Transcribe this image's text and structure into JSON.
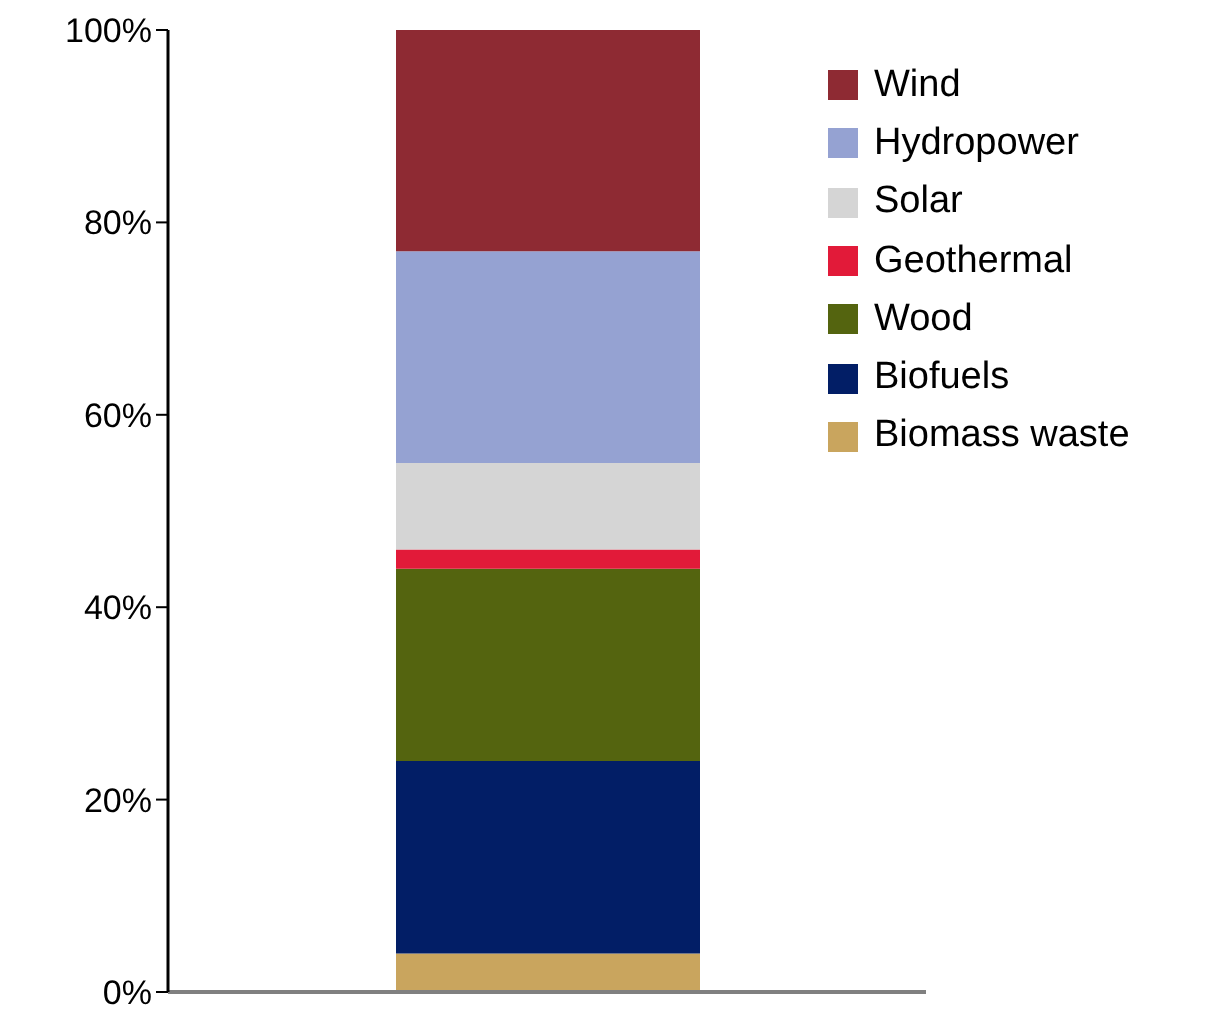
{
  "chart_data": {
    "type": "bar",
    "stacked": true,
    "categories": [
      null
    ],
    "series": [
      {
        "name": "Biomass waste",
        "color": "#c9a55e",
        "values": [
          4
        ]
      },
      {
        "name": "Biofuels",
        "color": "#021e66",
        "values": [
          20
        ]
      },
      {
        "name": "Wood",
        "color": "#54640f",
        "values": [
          20
        ]
      },
      {
        "name": "Geothermal",
        "color": "#e21a39",
        "values": [
          2
        ]
      },
      {
        "name": "Solar",
        "color": "#d5d5d5",
        "values": [
          9
        ]
      },
      {
        "name": "Hydropower",
        "color": "#95a2d2",
        "values": [
          22
        ]
      },
      {
        "name": "Wind",
        "color": "#8e2a33",
        "values": [
          23
        ]
      }
    ],
    "ylim": [
      0,
      100
    ],
    "yticks": [
      {
        "value": 0,
        "label": "0%"
      },
      {
        "value": 20,
        "label": "20%"
      },
      {
        "value": 40,
        "label": "40%"
      },
      {
        "value": 60,
        "label": "60%"
      },
      {
        "value": 80,
        "label": "80%"
      },
      {
        "value": 100,
        "label": "100%"
      }
    ],
    "grid": false,
    "legend": "top right"
  }
}
